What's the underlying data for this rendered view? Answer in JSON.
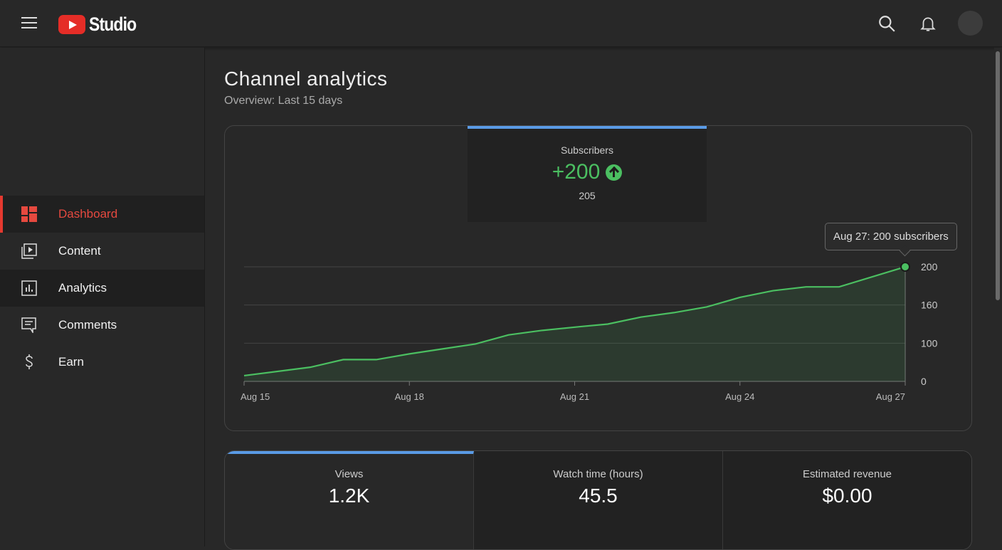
{
  "header": {
    "logo": "Studio"
  },
  "sidebar": {
    "items": [
      {
        "label": "Dashboard"
      },
      {
        "label": "Content"
      },
      {
        "label": "Analytics"
      },
      {
        "label": "Comments"
      },
      {
        "label": "Earn"
      }
    ]
  },
  "page": {
    "title": "Channel analytics",
    "subtitle": "Overview: Last 15 days"
  },
  "stat": {
    "title": "Subscribers",
    "delta": "+200",
    "total": "205"
  },
  "tooltip": "Aug 27: 200 subscribers",
  "metrics": [
    {
      "title": "Views",
      "value": "1.2K"
    },
    {
      "title": "Watch time (hours)",
      "value": "45.5"
    },
    {
      "title": "Estimated revenue",
      "value": "$0.00"
    }
  ],
  "colors": {
    "accent": "#5a9be6",
    "line": "#4bbf61",
    "active": "#e5392f"
  },
  "chart_data": {
    "type": "area",
    "title": "Subscribers",
    "xlabel": "",
    "ylabel": "",
    "x_ticks": [
      {
        "day": 0,
        "label": "Aug 15"
      },
      {
        "day": 3,
        "label": "Aug 18"
      },
      {
        "day": 6,
        "label": "Aug 21"
      },
      {
        "day": 9,
        "label": "Aug 24"
      },
      {
        "day": 12,
        "label": "Aug 27"
      }
    ],
    "y_ticks": [
      0,
      100,
      160,
      200
    ],
    "x": [
      0,
      1.2,
      1.8,
      2.4,
      3.0,
      3.6,
      4.2,
      4.8,
      5.4,
      6.1,
      6.6,
      7.2,
      7.8,
      8.4,
      9.0,
      9.6,
      10.2,
      10.8,
      12
    ],
    "y": [
      15,
      37,
      57,
      57,
      72,
      85,
      98,
      113,
      120,
      126,
      130,
      141,
      148,
      157,
      168,
      175,
      179,
      179,
      200
    ],
    "highlight": {
      "day": 12,
      "value": 200
    }
  }
}
